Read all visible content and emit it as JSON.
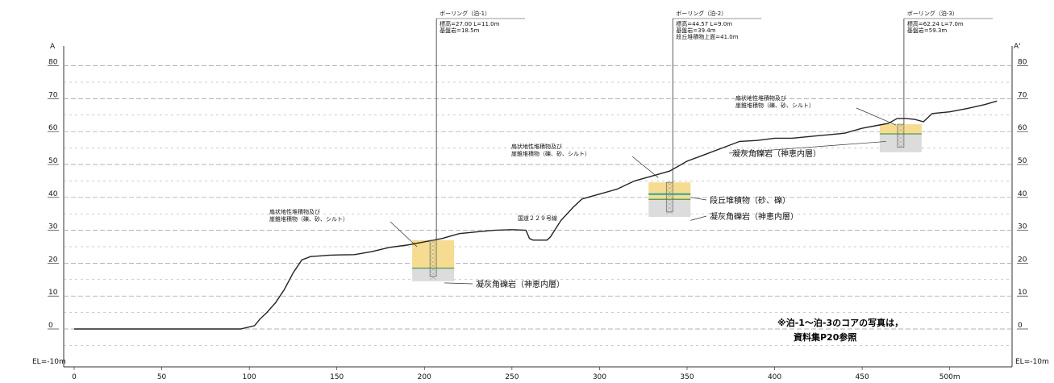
{
  "axes": {
    "x_ticks": [
      "0",
      "50",
      "100",
      "150",
      "200",
      "250",
      "300",
      "350",
      "400",
      "450",
      "500m"
    ],
    "y_ticks": [
      "80",
      "70",
      "60",
      "50",
      "40",
      "30",
      "20",
      "10",
      "0"
    ],
    "y_bottom_label": "EL=-10m",
    "section_left": "A",
    "section_right": "A'",
    "x_range": [
      0,
      530
    ],
    "y_range": [
      -10,
      80
    ]
  },
  "profile": {
    "points": [
      [
        0,
        0
      ],
      [
        95,
        0
      ],
      [
        103,
        1
      ],
      [
        106,
        3
      ],
      [
        110,
        5
      ],
      [
        115,
        8
      ],
      [
        120,
        12
      ],
      [
        125,
        17
      ],
      [
        130,
        21
      ],
      [
        135,
        22
      ],
      [
        140,
        22.2
      ],
      [
        145,
        22.4
      ],
      [
        150,
        22.5
      ],
      [
        160,
        22.6
      ],
      [
        170,
        23.5
      ],
      [
        180,
        24.8
      ],
      [
        190,
        25.5
      ],
      [
        200,
        26.5
      ],
      [
        210,
        27.5
      ],
      [
        220,
        29
      ],
      [
        230,
        29.5
      ],
      [
        240,
        30
      ],
      [
        250,
        30.2
      ],
      [
        258,
        30
      ],
      [
        260,
        27.5
      ],
      [
        262,
        27
      ],
      [
        270,
        27
      ],
      [
        272,
        28
      ],
      [
        278,
        33
      ],
      [
        285,
        37
      ],
      [
        290,
        39.5
      ],
      [
        300,
        41
      ],
      [
        310,
        42.5
      ],
      [
        320,
        45
      ],
      [
        330,
        46.5
      ],
      [
        340,
        48
      ],
      [
        350,
        51
      ],
      [
        360,
        53
      ],
      [
        370,
        55
      ],
      [
        380,
        57
      ],
      [
        390,
        57.3
      ],
      [
        400,
        58
      ],
      [
        410,
        58
      ],
      [
        420,
        58.5
      ],
      [
        430,
        59
      ],
      [
        440,
        59.5
      ],
      [
        450,
        61
      ],
      [
        460,
        62
      ],
      [
        465,
        62.5
      ],
      [
        470,
        64
      ],
      [
        475,
        64
      ],
      [
        480,
        63.7
      ],
      [
        485,
        63
      ],
      [
        490,
        65.5
      ],
      [
        500,
        66
      ],
      [
        510,
        67
      ],
      [
        520,
        68.2
      ],
      [
        527,
        69.3
      ]
    ],
    "road_label": "国道２２９号線"
  },
  "boreholes": [
    {
      "title": "ボーリング（泊-1）",
      "info": [
        "標高=27.00 L=11.0m",
        "基盤岩=18.5m"
      ],
      "x": 205,
      "top": 27,
      "bottom": 16,
      "bedrock_top": 18.5,
      "terrace_top": null,
      "upper_label": [
        "扇状地性堆積物及び",
        "崖錐堆積物（礫、砂、シルト）"
      ],
      "lower_label": "凝灰角礫岩（神恵内層）"
    },
    {
      "title": "ボーリング（泊-2）",
      "info": [
        "標高=44.57 L=9.0m",
        "基盤岩=39.4m",
        "段丘堆積物上面=41.0m"
      ],
      "x": 340,
      "top": 44.57,
      "bottom": 35.57,
      "bedrock_top": 39.4,
      "terrace_top": 41.0,
      "upper_label": [
        "扇状地性堆積物及び",
        "崖錐堆積物（礫、砂、シルト）"
      ],
      "terrace_label": "段丘堆積物（砂、礫）",
      "lower_label": "凝灰角礫岩（神恵内層）"
    },
    {
      "title": "ボーリング（泊-3）",
      "info": [
        "標高=62.24 L=7.0m",
        "基盤岩=59.3m"
      ],
      "x": 472,
      "top": 62.24,
      "bottom": 55.24,
      "bedrock_top": 59.3,
      "terrace_top": null,
      "upper_label": [
        "扇状地性堆積物及び",
        "崖錐堆積物（礫、砂、シルト）"
      ],
      "lower_label": "凝灰角礫岩（神恵内層）"
    }
  ],
  "note": [
    "※泊-1～泊-3のコアの写真は，",
    "資料集P20参照"
  ],
  "colors": {
    "deposit": "#f5dc90",
    "bedrock": "#dcdcdc",
    "terrace": "#2aa59a",
    "grid": "#9a9a9a",
    "profile": "#222222"
  }
}
